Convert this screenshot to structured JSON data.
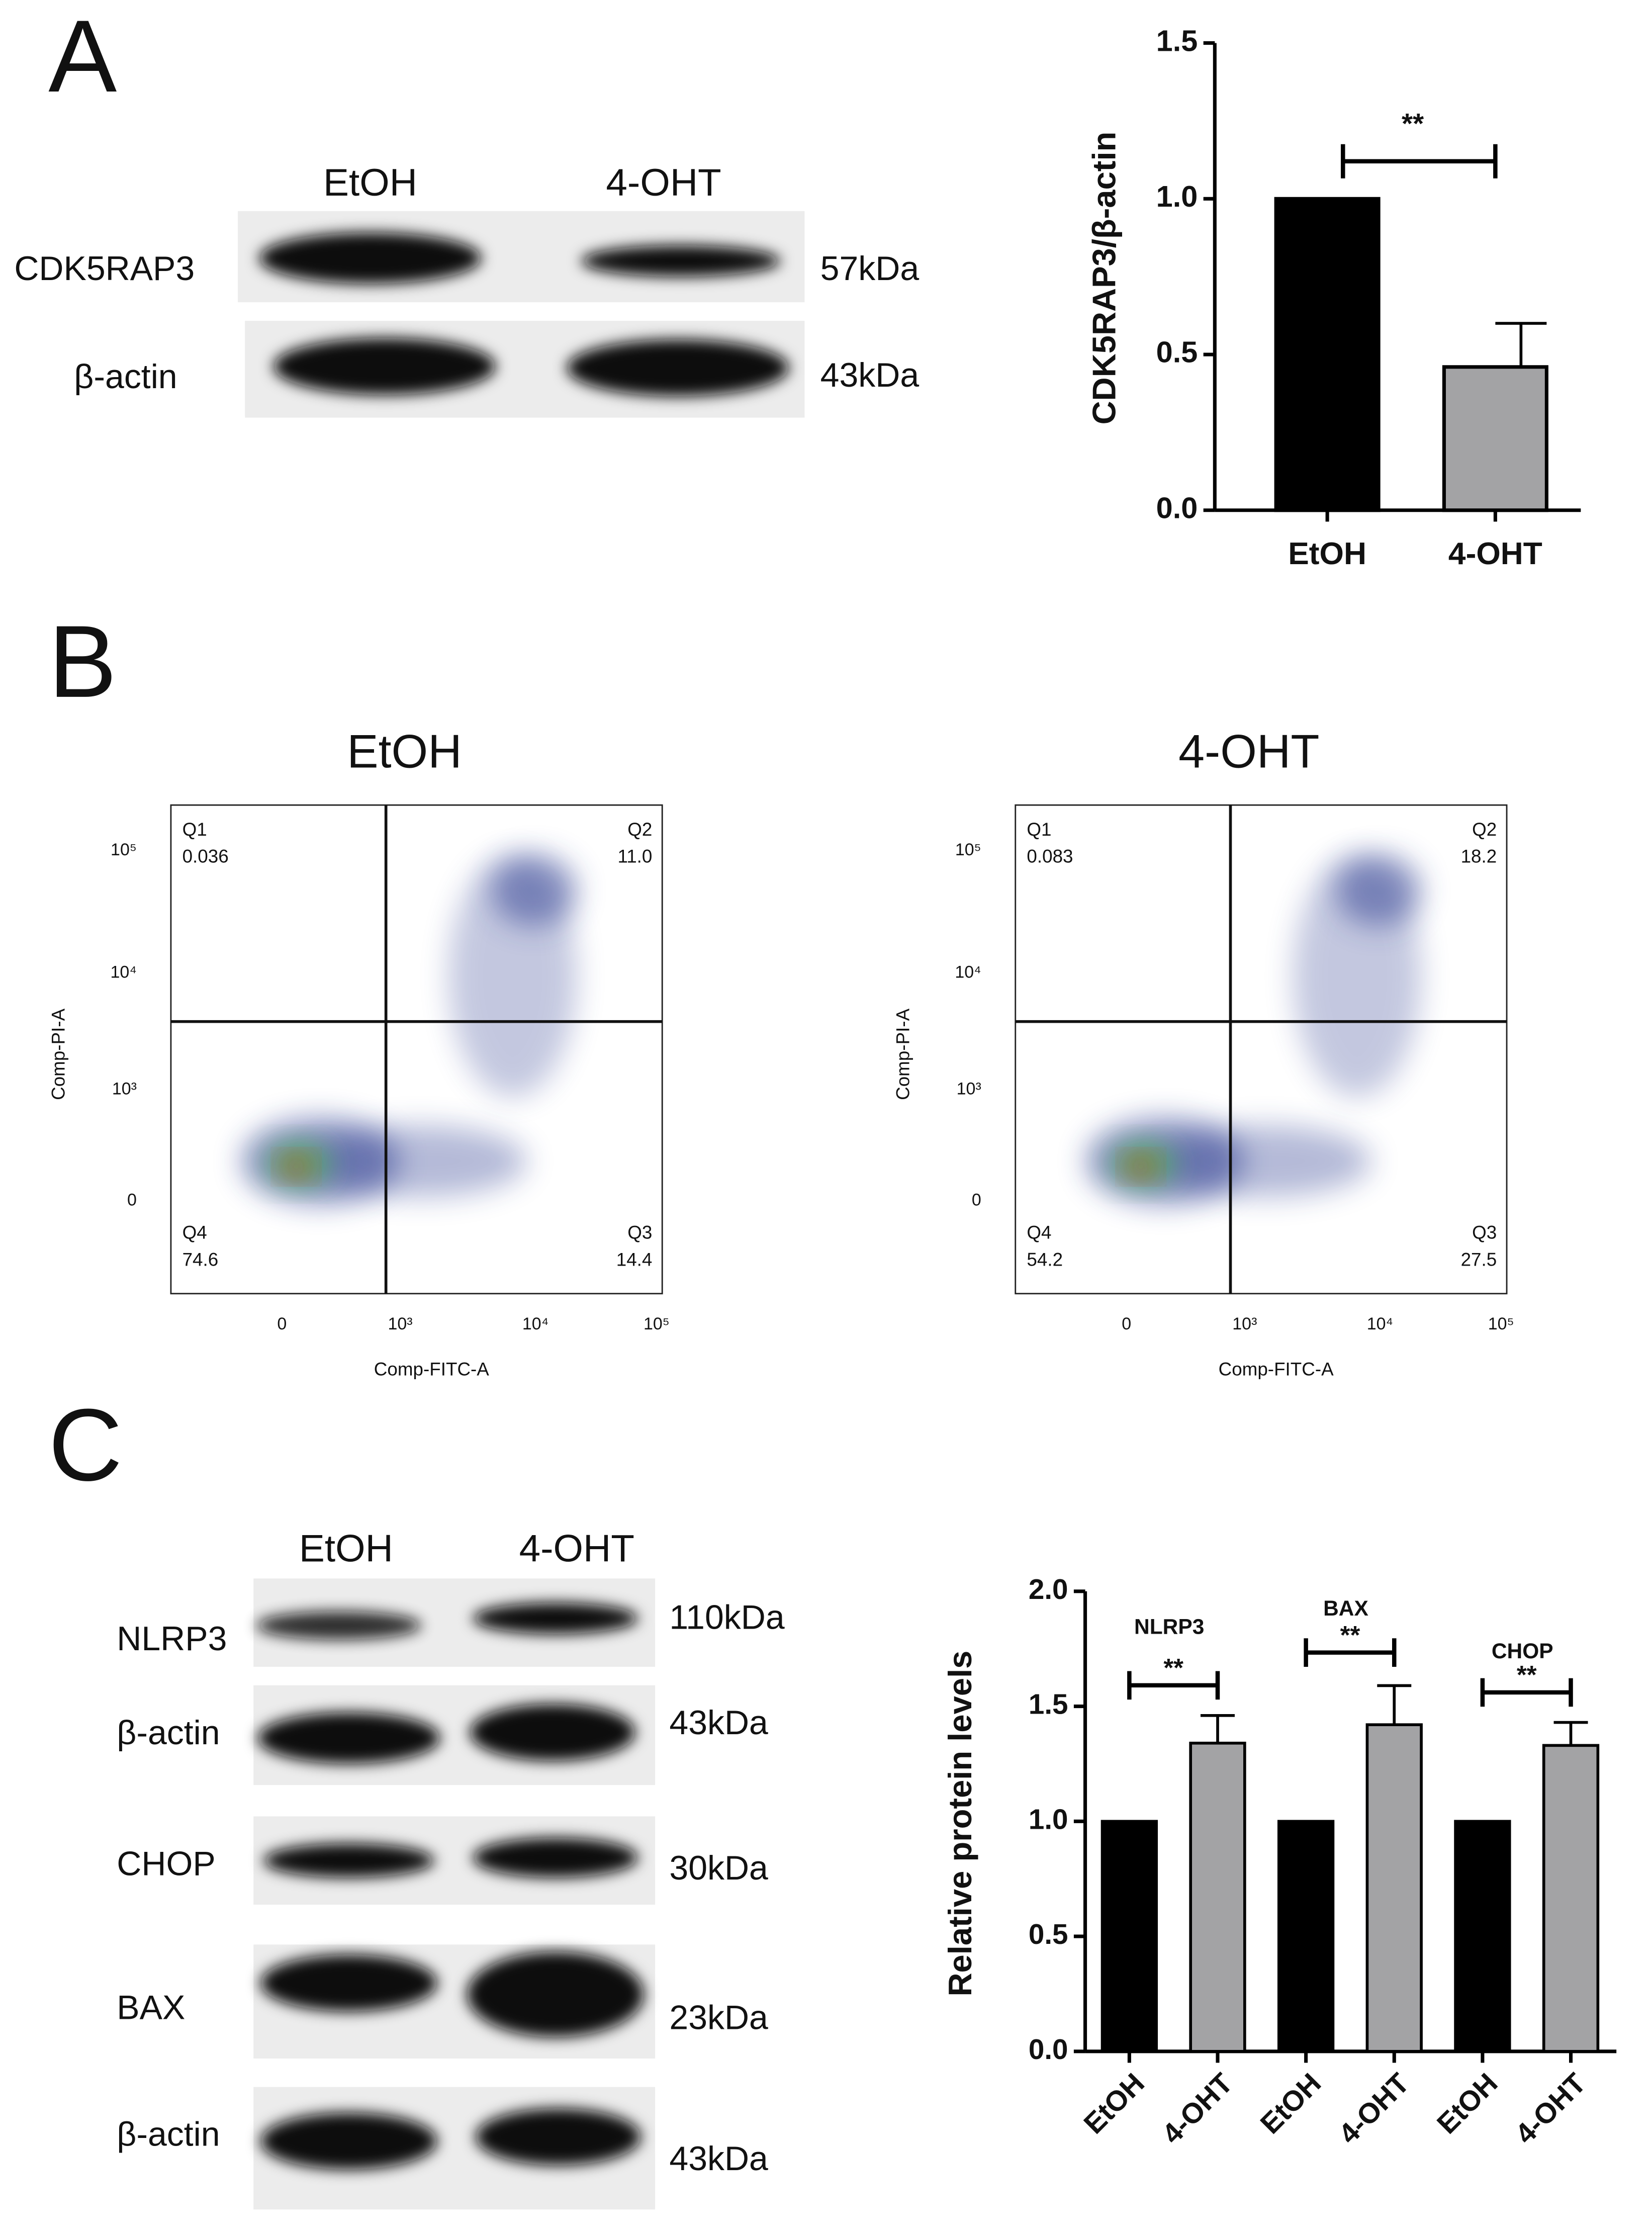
{
  "panel_labels": [
    "A",
    "B",
    "C"
  ],
  "blot_a": {
    "lanes": [
      "EtOH",
      "4-OHT"
    ],
    "rows": [
      {
        "protein": "CDK5RAP3",
        "size": "57kDa"
      },
      {
        "protein": "β-actin",
        "size": "43kDa"
      }
    ]
  },
  "flow": [
    {
      "title": "EtOH",
      "x_label": "Comp-FITC-A",
      "y_label": "Comp-PI-A",
      "yticks": [
        "10⁵",
        "10⁴",
        "10³",
        "0"
      ],
      "xticks": [
        "0",
        "10³",
        "10⁴",
        "10⁵"
      ],
      "quadrants": [
        {
          "name": "Q1",
          "value": "0.036"
        },
        {
          "name": "Q2",
          "value": "11.0"
        },
        {
          "name": "Q3",
          "value": "14.4"
        },
        {
          "name": "Q4",
          "value": "74.6"
        }
      ]
    },
    {
      "title": "4-OHT",
      "x_label": "Comp-FITC-A",
      "y_label": "Comp-PI-A",
      "yticks": [
        "10⁵",
        "10⁴",
        "10³",
        "0"
      ],
      "xticks": [
        "0",
        "10³",
        "10⁴",
        "10⁵"
      ],
      "quadrants": [
        {
          "name": "Q1",
          "value": "0.083"
        },
        {
          "name": "Q2",
          "value": "18.2"
        },
        {
          "name": "Q3",
          "value": "27.5"
        },
        {
          "name": "Q4",
          "value": "54.2"
        }
      ]
    }
  ],
  "blot_c": {
    "lanes": [
      "EtOH",
      "4-OHT"
    ],
    "rows": [
      {
        "protein": "NLRP3",
        "size": "110kDa"
      },
      {
        "protein": "β-actin",
        "size": "43kDa"
      },
      {
        "protein": "CHOP",
        "size": "30kDa"
      },
      {
        "protein": "BAX",
        "size": "23kDa"
      },
      {
        "protein": "β-actin",
        "size": "43kDa"
      }
    ]
  },
  "chart_data": [
    {
      "type": "bar",
      "y_label": "CDK5RAP3/β-actin",
      "categories": [
        "EtOH",
        "4-OHT"
      ],
      "values": [
        1.0,
        0.46
      ],
      "errors": [
        0,
        0.14
      ],
      "colors": [
        "#000000",
        "#a3a3a5"
      ],
      "ylim": [
        0,
        1.5
      ],
      "yticks": [
        {
          "value": 0,
          "label": "0.0"
        },
        0.5,
        {
          "value": 1,
          "label": "1.0"
        },
        1.5
      ],
      "annotation": "**"
    },
    {
      "type": "grouped_bar",
      "y_label": "Relative protein levels",
      "groups": [
        "NLRP3",
        "BAX",
        "CHOP"
      ],
      "series": [
        {
          "name": "EtOH",
          "color": "#000000",
          "values": [
            1.0,
            1.0,
            1.0
          ],
          "errors": [
            0,
            0,
            0
          ]
        },
        {
          "name": "4-OHT",
          "color": "#a3a3a5",
          "values": [
            1.34,
            1.42,
            1.33
          ],
          "errors": [
            0.12,
            0.17,
            0.1
          ]
        }
      ],
      "ylim": [
        0,
        2
      ],
      "yticks": [
        {
          "value": 0,
          "label": "0.0"
        },
        0.5,
        {
          "value": 1,
          "label": "1.0"
        },
        1.5,
        {
          "value": 2,
          "label": "2.0"
        }
      ],
      "annotations": [
        "**",
        "**",
        "**"
      ]
    }
  ]
}
